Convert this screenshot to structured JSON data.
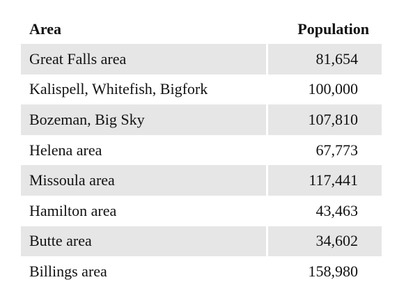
{
  "table": {
    "header": [
      "Area",
      "Population"
    ],
    "rows": [
      [
        "Great Falls area",
        "81,654"
      ],
      [
        "Kalispell, Whitefish, Bigfork",
        "100,000"
      ],
      [
        "Bozeman, Big Sky",
        "107,810"
      ],
      [
        "Helena area",
        "67,773"
      ],
      [
        "Missoula area",
        "117,441"
      ],
      [
        "Hamilton area",
        "43,463"
      ],
      [
        "Butte area",
        "34,602"
      ],
      [
        "Billings area",
        "158,980"
      ]
    ]
  }
}
